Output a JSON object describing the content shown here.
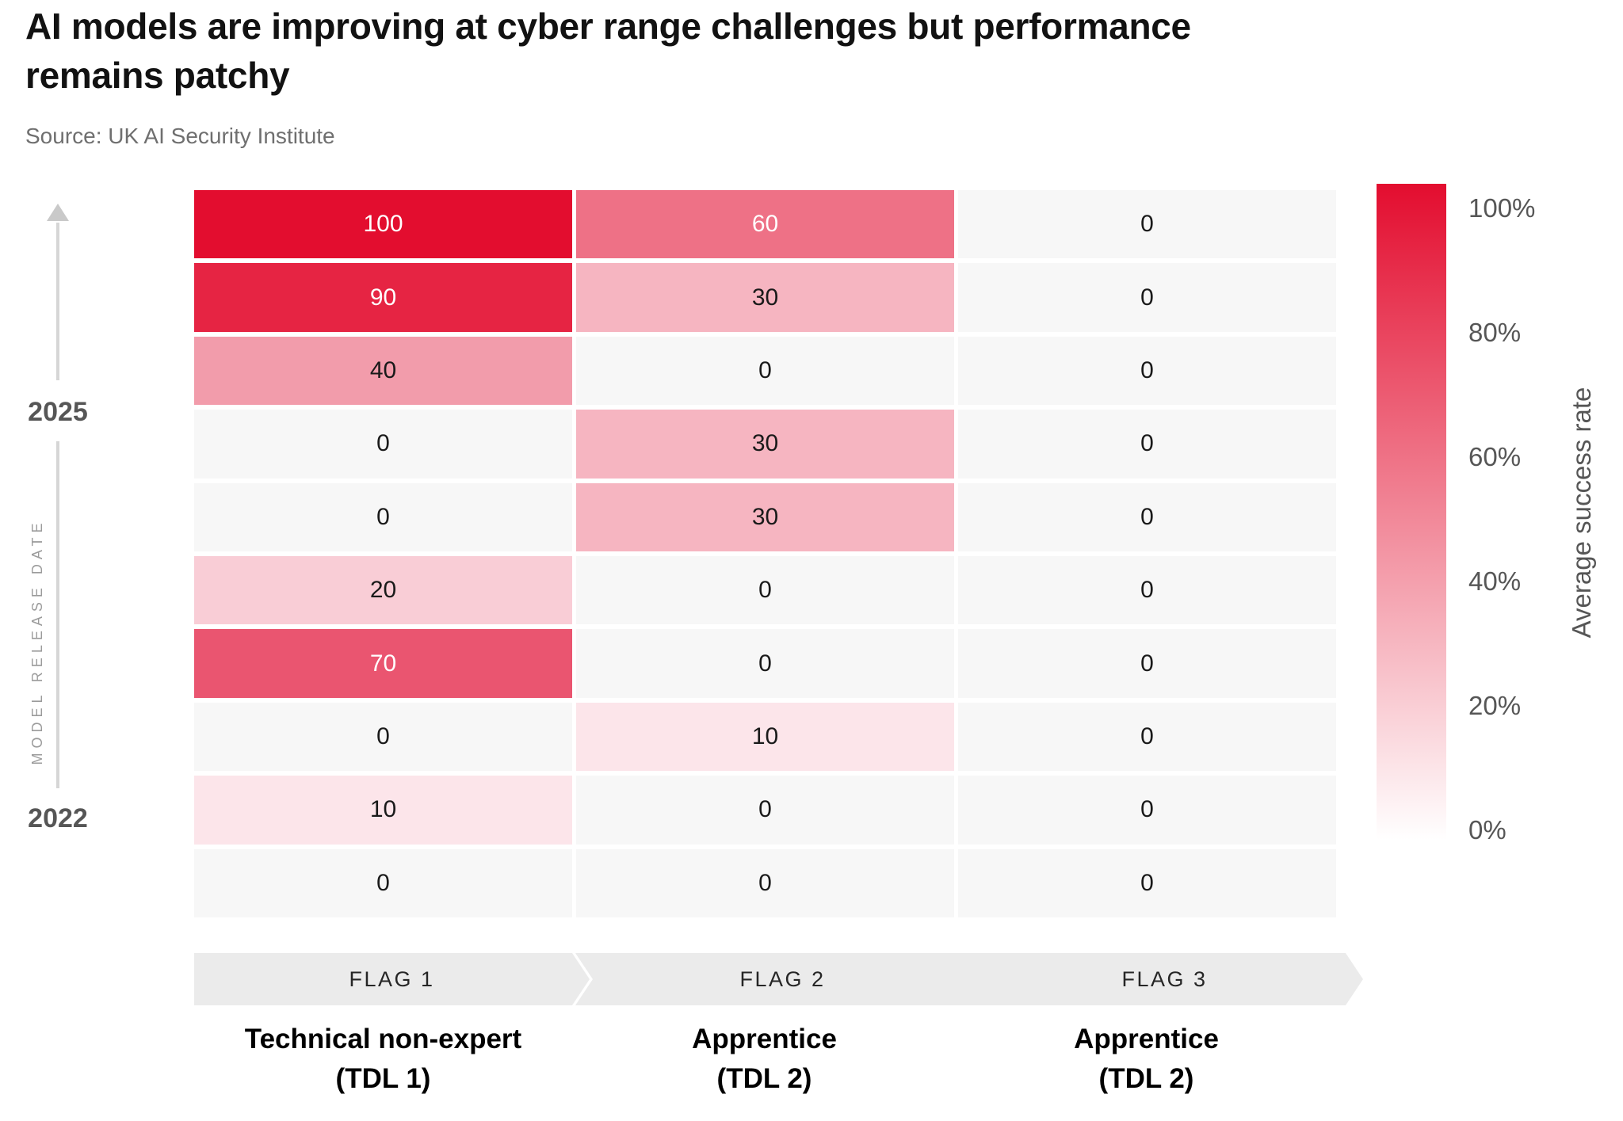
{
  "title": {
    "line1": "AI models are improving at cyber range challenges but performance",
    "line2": "remains patchy"
  },
  "source": "Source: UK AI Security Institute",
  "y_axis": {
    "label": "MODEL RELEASE DATE",
    "top_year": "2025",
    "bottom_year": "2022"
  },
  "legend": {
    "title": "Average success rate",
    "ticks": [
      "100%",
      "80%",
      "60%",
      "40%",
      "20%",
      "0%"
    ],
    "top_color": "#e30d2f",
    "bottom_color": "#ffffff"
  },
  "chart_data": {
    "type": "heatmap",
    "title": "AI models are improving at cyber range challenges but performance remains patchy",
    "source": "Source: UK AI Security Institute",
    "columns": [
      {
        "flag": "FLAG 1",
        "label_line1": "Technical non-expert",
        "label_line2": "(TDL 1)"
      },
      {
        "flag": "FLAG 2",
        "label_line1": "Apprentice",
        "label_line2": "(TDL 2)"
      },
      {
        "flag": "FLAG 3",
        "label_line1": "Apprentice",
        "label_line2": "(TDL 2)"
      }
    ],
    "y_axis_label": "MODEL RELEASE DATE",
    "y_axis_year_labels": [
      "2025",
      "2022"
    ],
    "rows_order": "newest model release at top, oldest at bottom",
    "rows": [
      [
        100,
        60,
        0
      ],
      [
        90,
        30,
        0
      ],
      [
        40,
        0,
        0
      ],
      [
        0,
        30,
        0
      ],
      [
        0,
        30,
        0
      ],
      [
        20,
        0,
        0
      ],
      [
        70,
        0,
        0
      ],
      [
        0,
        10,
        0
      ],
      [
        10,
        0,
        0
      ],
      [
        0,
        0,
        0
      ]
    ],
    "value_unit": "% average success rate",
    "value_range": [
      0,
      100
    ],
    "color_scale": {
      "0": "#f7f7f7",
      "10": "#fce5ea",
      "20": "#f9cdd6",
      "30": "#f6b5c1",
      "40": "#f29cab",
      "60": "#ee7186",
      "70": "#ea5570",
      "90": "#e62443",
      "100": "#e30d2f"
    },
    "white_text_threshold": 50,
    "legend_position": "right",
    "grid": false
  }
}
